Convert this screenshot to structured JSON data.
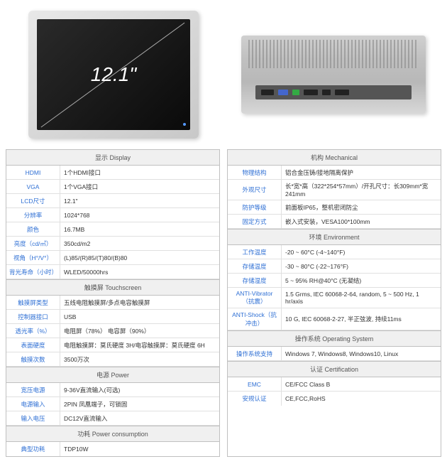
{
  "monitor": {
    "diagonal": "12.1\""
  },
  "left": {
    "sections": [
      {
        "title": "显示 Display",
        "rows": [
          {
            "label": "HDMI",
            "value": "1个HDMI接口"
          },
          {
            "label": "VGA",
            "value": "1个VGA接口"
          },
          {
            "label": "LCD尺寸",
            "value": "12.1\""
          },
          {
            "label": "分辨率",
            "value": "1024*768"
          },
          {
            "label": "颜色",
            "value": "16.7MB"
          },
          {
            "label": "亮度（cd/㎡）",
            "value": "350cd/m2"
          },
          {
            "label": "视角（H°/V°）",
            "value": "(L)85/(R)85/(T)80/(B)80"
          },
          {
            "label": "背光寿命（小时）",
            "value": "WLED/50000hrs"
          }
        ]
      },
      {
        "title": "触摸屏 Touchscreen",
        "rows": [
          {
            "label": "触摸屏类型",
            "value": "五线电阻触摸屏/多点电容触摸屏"
          },
          {
            "label": "控制器接口",
            "value": "USB"
          },
          {
            "label": "透光率（%）",
            "value": "电阻屏（78%） 电容屏（90%）"
          },
          {
            "label": "表面硬度",
            "value": "电阻触摸屏：莫氏硬度 3H/电容触摸屏：莫氏硬度 6H"
          },
          {
            "label": "触摸次数",
            "value": "3500万次"
          }
        ]
      },
      {
        "title": "电源 Power",
        "rows": [
          {
            "label": "宽压电源",
            "value": "9-36V直流输入(可选)"
          },
          {
            "label": "电源输入",
            "value": "2PIN 凤凰端子，可锁固"
          },
          {
            "label": "输入电压",
            "value": "DC12V直流输入"
          }
        ]
      },
      {
        "title": "功耗 Power consumption",
        "rows": [
          {
            "label": "典型功耗",
            "value": "TDP10W"
          }
        ]
      }
    ]
  },
  "right": {
    "sections": [
      {
        "title": "机构 Mechanical",
        "rows": [
          {
            "label": "物理结构",
            "value": "铝合金压铸/接地隔离保护"
          },
          {
            "label": "外观尺寸",
            "value": "长*宽*高（322*254*57mm）/开孔尺寸：长309mm*宽241mm"
          },
          {
            "label": "防护等级",
            "value": "前面板IP65，整机密闭防尘"
          },
          {
            "label": "固定方式",
            "value": "嵌入式安装，VESA100*100mm"
          }
        ]
      },
      {
        "title": "环境 Environment",
        "rows": [
          {
            "label": "工作温度",
            "value": "-20 ~ 60°C (-4~140°F)"
          },
          {
            "label": "存储温度",
            "value": "-30 ~ 80°C (-22~176°F)"
          },
          {
            "label": "存储湿度",
            "value": "5 ~ 95% RH@40°C (无凝结)"
          },
          {
            "label": "ANTI-Vibrator（抗震）",
            "value": "1.5 Grms, IEC 60068-2-64, random, 5 ~ 500 Hz, 1 hr/axis"
          },
          {
            "label": "ANTI-Shock（抗冲击）",
            "value": "10 G, IEC 60068-2-27, 半正弦波, 持续11ms"
          }
        ]
      },
      {
        "title": "操作系统 Operating System",
        "rows": [
          {
            "label": "操作系统支持",
            "value": "Windows 7, Windows8, Windows10, Linux"
          }
        ]
      },
      {
        "title": "认证 Certification",
        "rows": [
          {
            "label": "EMC",
            "value": "CE/FCC Class B"
          },
          {
            "label": "安规认证",
            "value": "CE,FCC,RoHS"
          }
        ]
      }
    ]
  },
  "colors": {
    "label": "#2e6fd4",
    "border": "#c0c0c0",
    "header_bg": "#f0f0f0"
  }
}
